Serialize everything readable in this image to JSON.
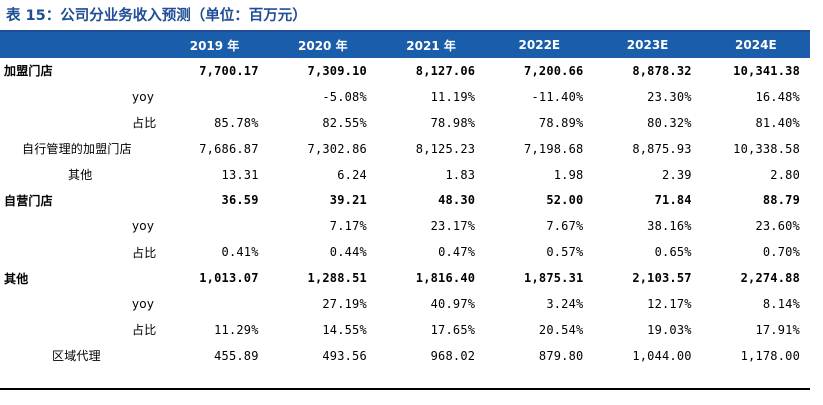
{
  "title": "表 15：公司分业务收入预测（单位：百万元）",
  "headers": [
    "",
    "2019 年",
    "2020 年",
    "2021 年",
    "2022E",
    "2023E",
    "2024E"
  ],
  "rows": [
    {
      "label": "加盟门店",
      "type": "main",
      "values": [
        "7,700.17",
        "7,309.10",
        "8,127.06",
        "7,200.66",
        "8,878.32",
        "10,341.38"
      ]
    },
    {
      "label": "yoy",
      "type": "yoy",
      "values": [
        "",
        "-5.08%",
        "11.19%",
        "-11.40%",
        "23.30%",
        "16.48%"
      ]
    },
    {
      "label": "占比",
      "type": "yoy",
      "values": [
        "85.78%",
        "82.55%",
        "78.98%",
        "78.89%",
        "80.32%",
        "81.40%"
      ]
    },
    {
      "label": "自行管理的加盟门店",
      "type": "sub",
      "values": [
        "7,686.87",
        "7,302.86",
        "8,125.23",
        "7,198.68",
        "8,875.93",
        "10,338.58"
      ]
    },
    {
      "label": "其他",
      "type": "qt",
      "values": [
        "13.31",
        "6.24",
        "1.83",
        "1.98",
        "2.39",
        "2.80"
      ]
    },
    {
      "label": "自营门店",
      "type": "main",
      "values": [
        "36.59",
        "39.21",
        "48.30",
        "52.00",
        "71.84",
        "88.79"
      ]
    },
    {
      "label": "yoy",
      "type": "yoy",
      "values": [
        "",
        "7.17%",
        "23.17%",
        "7.67%",
        "38.16%",
        "23.60%"
      ]
    },
    {
      "label": "占比",
      "type": "yoy",
      "values": [
        "0.41%",
        "0.44%",
        "0.47%",
        "0.57%",
        "0.65%",
        "0.70%"
      ]
    },
    {
      "label": "其他",
      "type": "main",
      "values": [
        "1,013.07",
        "1,288.51",
        "1,816.40",
        "1,875.31",
        "2,103.57",
        "2,274.88"
      ]
    },
    {
      "label": "yoy",
      "type": "yoy",
      "values": [
        "",
        "27.19%",
        "40.97%",
        "3.24%",
        "12.17%",
        "8.14%"
      ]
    },
    {
      "label": "占比",
      "type": "yoy",
      "values": [
        "11.29%",
        "14.55%",
        "17.65%",
        "20.54%",
        "19.03%",
        "17.91%"
      ]
    },
    {
      "label": "区域代理",
      "type": "qy",
      "values": [
        "455.89",
        "493.56",
        "968.02",
        "879.80",
        "1,044.00",
        "1,178.00"
      ]
    }
  ]
}
